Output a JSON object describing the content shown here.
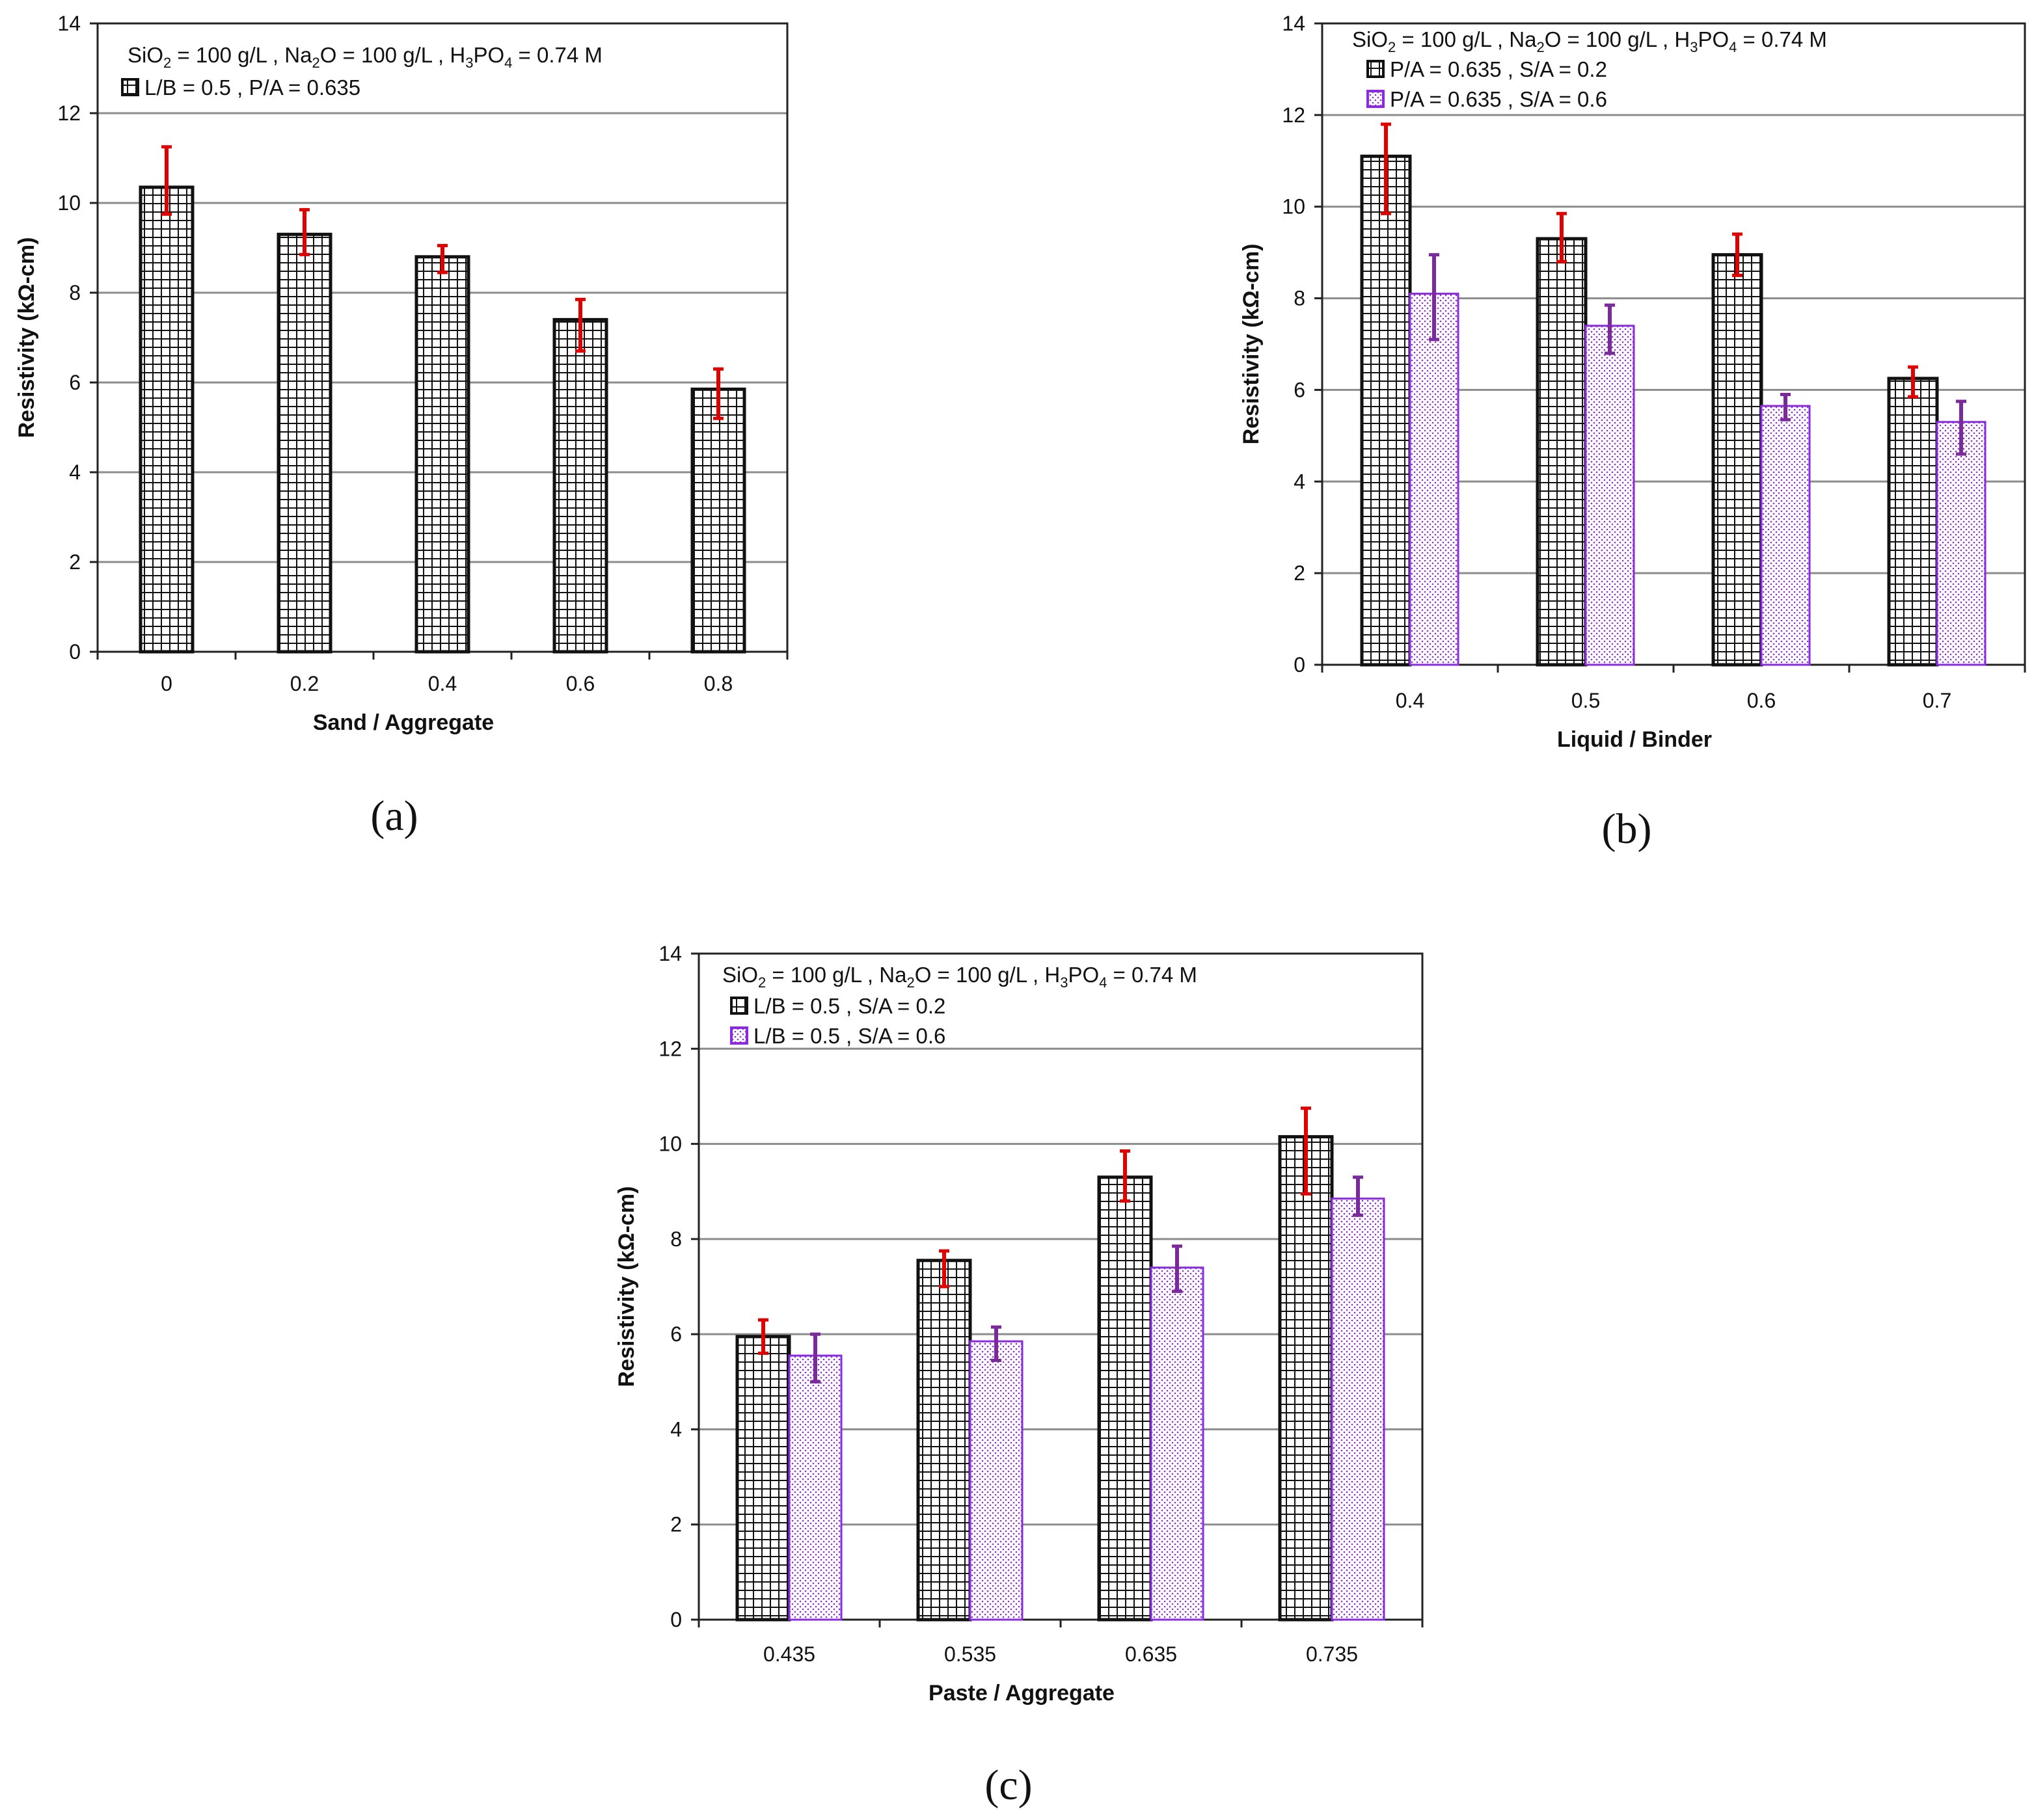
{
  "colors": {
    "series_black": "#111111",
    "series_purple": "#8a2be2",
    "error_red": "#e00000",
    "error_purple": "#7a2a9a",
    "grid": "#8c8c8c"
  },
  "chart_data": [
    {
      "type": "bar",
      "panel_label": "(a)",
      "conditions": {
        "prefix": "SiO",
        "sub1": "2",
        "mid1": " = 100 g/L , Na",
        "sub2": "2",
        "mid2": "O = 100 g/L , H",
        "sub3": "3",
        "mid3": "PO",
        "sub4": "4",
        "suffix": " = 0.74 M"
      },
      "xlabel": "Sand / Aggregate",
      "ylabel": "Resistivity (kΩ-cm)",
      "ylim": [
        0,
        14
      ],
      "yticks": [
        0,
        2,
        4,
        6,
        8,
        10,
        12,
        14
      ],
      "grid": true,
      "categories": [
        "0",
        "0.2",
        "0.4",
        "0.6",
        "0.8"
      ],
      "series": [
        {
          "name": "L/B = 0.5 , P/A = 0.635",
          "pattern": "grid",
          "color": "#111111",
          "error_color": "#e00000",
          "values": [
            10.35,
            9.3,
            8.8,
            7.4,
            5.85
          ],
          "err_low": [
            9.75,
            8.85,
            8.45,
            6.7,
            5.2
          ],
          "err_high": [
            11.25,
            9.85,
            9.05,
            7.85,
            6.3
          ]
        }
      ]
    },
    {
      "type": "bar",
      "panel_label": "(b)",
      "conditions": {
        "prefix": "SiO",
        "sub1": "2",
        "mid1": " = 100 g/L , Na",
        "sub2": "2",
        "mid2": "O = 100 g/L , H",
        "sub3": "3",
        "mid3": "PO",
        "sub4": "4",
        "suffix": " = 0.74 M"
      },
      "xlabel": "Liquid / Binder",
      "ylabel": "Resistivity (kΩ-cm)",
      "ylim": [
        0,
        14
      ],
      "yticks": [
        0,
        2,
        4,
        6,
        8,
        10,
        12,
        14
      ],
      "grid": true,
      "categories": [
        "0.4",
        "0.5",
        "0.6",
        "0.7"
      ],
      "series": [
        {
          "name": "P/A = 0.635 , S/A = 0.2",
          "pattern": "grid",
          "color": "#111111",
          "error_color": "#e00000",
          "values": [
            11.1,
            9.3,
            8.95,
            6.25
          ],
          "err_low": [
            9.85,
            8.8,
            8.5,
            5.85
          ],
          "err_high": [
            11.8,
            9.85,
            9.4,
            6.5
          ]
        },
        {
          "name": "P/A = 0.635 , S/A = 0.6",
          "pattern": "dots",
          "color": "#8a2be2",
          "error_color": "#7a2a9a",
          "values": [
            8.1,
            7.4,
            5.65,
            5.3
          ],
          "err_low": [
            7.1,
            6.8,
            5.35,
            4.6
          ],
          "err_high": [
            8.95,
            7.85,
            5.9,
            5.75
          ]
        }
      ]
    },
    {
      "type": "bar",
      "panel_label": "(c)",
      "conditions": {
        "prefix": "SiO",
        "sub1": "2",
        "mid1": " = 100 g/L , Na",
        "sub2": "2",
        "mid2": "O = 100 g/L , H",
        "sub3": "3",
        "mid3": "PO",
        "sub4": "4",
        "suffix": " = 0.74 M"
      },
      "xlabel": "Paste / Aggregate",
      "ylabel": "Resistivity (kΩ-cm)",
      "ylim": [
        0,
        14
      ],
      "yticks": [
        0,
        2,
        4,
        6,
        8,
        10,
        12,
        14
      ],
      "grid": true,
      "categories": [
        "0.435",
        "0.535",
        "0.635",
        "0.735"
      ],
      "series": [
        {
          "name": "L/B = 0.5 , S/A = 0.2",
          "pattern": "grid",
          "color": "#111111",
          "error_color": "#e00000",
          "values": [
            5.95,
            7.55,
            9.3,
            10.15
          ],
          "err_low": [
            5.6,
            7.0,
            8.8,
            8.95
          ],
          "err_high": [
            6.3,
            7.75,
            9.85,
            10.75
          ]
        },
        {
          "name": "L/B = 0.5 , S/A = 0.6",
          "pattern": "dots",
          "color": "#8a2be2",
          "error_color": "#7a2a9a",
          "values": [
            5.55,
            5.85,
            7.4,
            8.85
          ],
          "err_low": [
            5.0,
            5.45,
            6.9,
            8.5
          ],
          "err_high": [
            6.0,
            6.15,
            7.85,
            9.3
          ]
        }
      ]
    }
  ]
}
